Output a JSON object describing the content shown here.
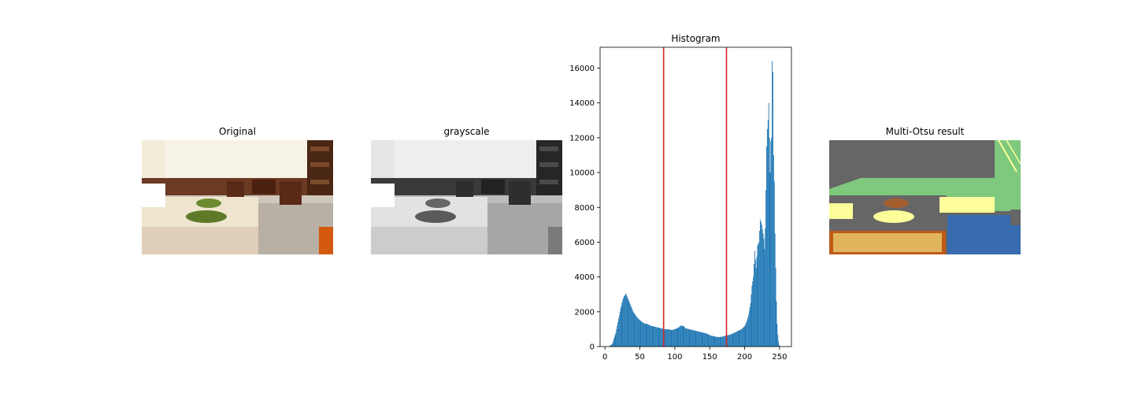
{
  "panels": {
    "original": {
      "title": "Original"
    },
    "grayscale": {
      "title": "grayscale"
    },
    "histogram": {
      "title": "Histogram"
    },
    "multi_otsu": {
      "title": "Multi-Otsu result"
    }
  },
  "colors": {
    "bar": "#1f77b4",
    "threshold_line": "#d62728",
    "otsu_classes": [
      "#666666",
      "#7fc97f",
      "#fdfd99",
      "#386cb0",
      "#bf5b17"
    ]
  },
  "chart_data": {
    "type": "bar",
    "title": "Histogram",
    "xlabel": "",
    "ylabel": "",
    "xlim": [
      -7,
      267
    ],
    "ylim": [
      0,
      17200
    ],
    "xticks": [
      0,
      50,
      100,
      150,
      200,
      250
    ],
    "yticks": [
      0,
      2000,
      4000,
      6000,
      8000,
      10000,
      12000,
      14000,
      16000
    ],
    "grid": false,
    "thresholds": [
      84,
      174
    ],
    "series": [
      {
        "x": [
          0,
          5,
          10,
          15,
          20,
          22,
          25,
          27,
          29,
          30,
          31,
          33,
          35,
          38,
          40,
          45,
          50,
          55,
          60,
          65,
          70,
          75,
          80,
          85,
          90,
          95,
          100,
          105,
          108,
          110,
          113,
          115,
          120,
          125,
          130,
          135,
          140,
          145,
          150,
          155,
          160,
          165,
          170,
          175,
          180,
          185,
          190,
          195,
          200,
          203,
          205,
          208,
          210,
          212,
          214,
          216,
          218,
          220,
          222,
          224,
          226,
          227,
          228,
          229,
          230,
          231,
          232,
          233,
          234,
          235,
          236,
          237,
          238,
          239,
          240,
          241,
          242,
          243,
          244,
          245,
          246,
          247,
          248,
          249,
          250,
          251,
          252,
          253,
          255
        ],
        "values": [
          0,
          0,
          150,
          800,
          1800,
          2200,
          2700,
          2900,
          3000,
          3050,
          2900,
          2700,
          2500,
          2200,
          2000,
          1700,
          1500,
          1350,
          1300,
          1200,
          1150,
          1100,
          1050,
          1000,
          1000,
          950,
          1000,
          1100,
          1200,
          1200,
          1150,
          1050,
          1000,
          950,
          900,
          850,
          800,
          750,
          650,
          600,
          550,
          550,
          600,
          650,
          700,
          800,
          900,
          1000,
          1200,
          1500,
          1800,
          2500,
          3500,
          4000,
          5500,
          4500,
          5800,
          6000,
          7300,
          7000,
          6500,
          6200,
          5600,
          6800,
          9000,
          11500,
          12500,
          13000,
          14000,
          12000,
          10000,
          11800,
          12000,
          16400,
          15800,
          11000,
          9500,
          6500,
          4500,
          2600,
          1300,
          700,
          300,
          100,
          0,
          0,
          0,
          0,
          0
        ]
      }
    ]
  }
}
